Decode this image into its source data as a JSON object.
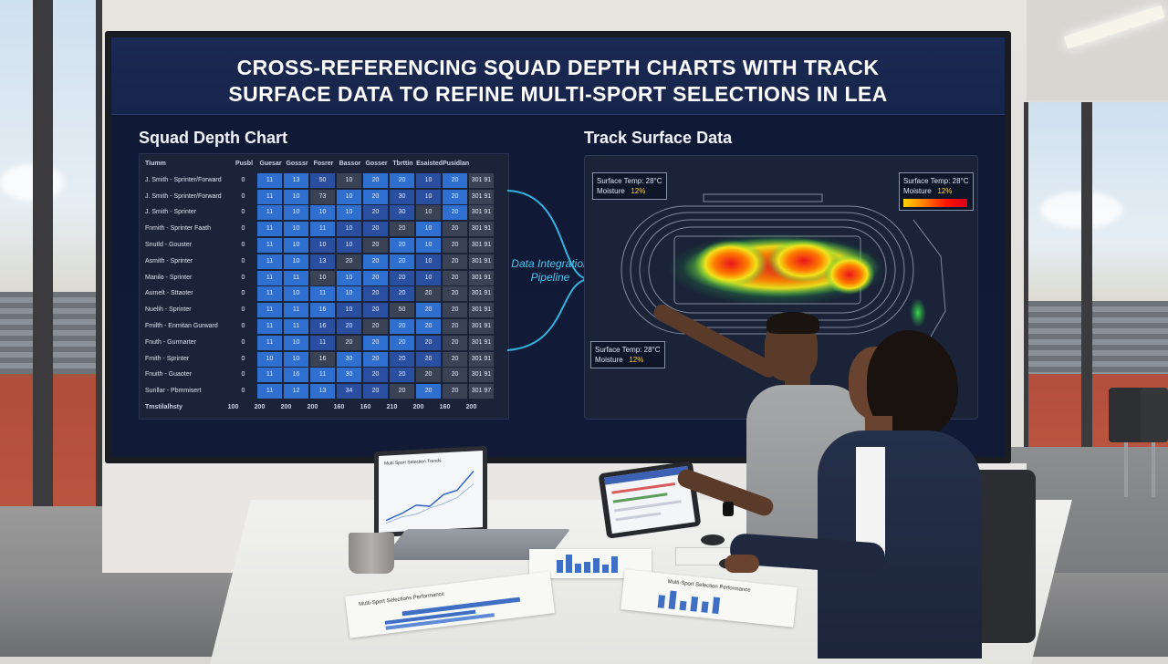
{
  "display": {
    "title_line1": "CROSS-REFERENCING SQUAD DEPTH CHARTS WITH TRACK",
    "title_line2": "SURFACE DATA TO REFINE MULTI-SPORT SELECTIONS IN LEA",
    "squad_heading": "Squad Depth Chart",
    "track_heading": "Track Surface Data",
    "pipeline_label_line1": "Data Integration",
    "pipeline_label_line2": "Pipeline"
  },
  "depth_table": {
    "headers": [
      "Tiumm",
      "Pusbl",
      "Guesar",
      "Gosssr",
      "Fosrer",
      "Bassor",
      "Gosser",
      "Tbrttin",
      "Esaisted",
      "Pusidlan"
    ],
    "rows": [
      {
        "name": "J. Smith - Sprinter/Forward",
        "cells": [
          "0",
          "11",
          "13",
          "50",
          "10",
          "20",
          "20",
          "10",
          "20",
          "301 91"
        ]
      },
      {
        "name": "J. Smith - Sprinter/Forward",
        "cells": [
          "0",
          "11",
          "10",
          "73",
          "10",
          "20",
          "30",
          "10",
          "20",
          "301 91"
        ]
      },
      {
        "name": "J. Smith - Sprinter",
        "cells": [
          "0",
          "11",
          "10",
          "10",
          "10",
          "20",
          "30",
          "10",
          "20",
          "301 91"
        ]
      },
      {
        "name": "Fnmith - Sprinter Faath",
        "cells": [
          "0",
          "11",
          "10",
          "11",
          "10",
          "20",
          "20",
          "10",
          "20",
          "301 91"
        ]
      },
      {
        "name": "Snutld - Gouster",
        "cells": [
          "0",
          "11",
          "10",
          "10",
          "10",
          "20",
          "20",
          "10",
          "20",
          "301 91"
        ]
      },
      {
        "name": "Asmith - Sprinter",
        "cells": [
          "0",
          "11",
          "10",
          "13",
          "20",
          "20",
          "20",
          "10",
          "20",
          "301 91"
        ]
      },
      {
        "name": "Manilo - Sprinter",
        "cells": [
          "0",
          "11",
          "11",
          "10",
          "10",
          "20",
          "20",
          "10",
          "20",
          "301 91"
        ]
      },
      {
        "name": "Aumelt - Sttaoter",
        "cells": [
          "0",
          "11",
          "10",
          "11",
          "10",
          "20",
          "20",
          "20",
          "20",
          "301 91"
        ]
      },
      {
        "name": "Nuelih - Sprinter",
        "cells": [
          "0",
          "11",
          "11",
          "16",
          "10",
          "20",
          "50",
          "20",
          "20",
          "301 91"
        ]
      },
      {
        "name": "Fmilth - Enmitan Gurward",
        "cells": [
          "0",
          "11",
          "11",
          "16",
          "20",
          "20",
          "20",
          "20",
          "20",
          "301 91"
        ]
      },
      {
        "name": "Fnuth - Gurmarter",
        "cells": [
          "0",
          "11",
          "10",
          "11",
          "20",
          "20",
          "20",
          "20",
          "20",
          "301 91"
        ]
      },
      {
        "name": "Fmith - Sprinter",
        "cells": [
          "0",
          "10",
          "10",
          "16",
          "30",
          "20",
          "20",
          "20",
          "20",
          "301 91"
        ]
      },
      {
        "name": "Fnuith - Guaoter",
        "cells": [
          "0",
          "11",
          "16",
          "11",
          "30",
          "20",
          "20",
          "20",
          "20",
          "301 91"
        ]
      },
      {
        "name": "Sunllar - Pbmmisert",
        "cells": [
          "0",
          "11",
          "12",
          "13",
          "34",
          "20",
          "20",
          "20",
          "20",
          "301 97"
        ]
      }
    ],
    "totals": {
      "name": "Tmstilalhsty",
      "cells": [
        "100",
        "200",
        "200",
        "200",
        "160",
        "160",
        "210",
        "200",
        "160",
        "200"
      ]
    },
    "colors": {
      "high": "#2f6fd0",
      "mid": "#2a4fa0",
      "low": "#3a4256",
      "base": "#1b2338"
    }
  },
  "track": {
    "readout_top_left": {
      "line1": "Surface Temp: 28°C",
      "label2": "Moisture",
      "value2": "12%"
    },
    "readout_top_right": {
      "line1": "Surface Temp: 28°C",
      "label2": "Moisture",
      "value2": "12%"
    },
    "readout_bottom_left": {
      "line1": "Surface Temp: 28°C",
      "label2": "Moisture",
      "value2": "12%"
    }
  },
  "laptop": {
    "chart_title": "Multi Sport Selection Trends"
  },
  "papers": {
    "left": "Multi-Sport Selections Performance",
    "right": "Multi-Sport Selection Performance"
  }
}
